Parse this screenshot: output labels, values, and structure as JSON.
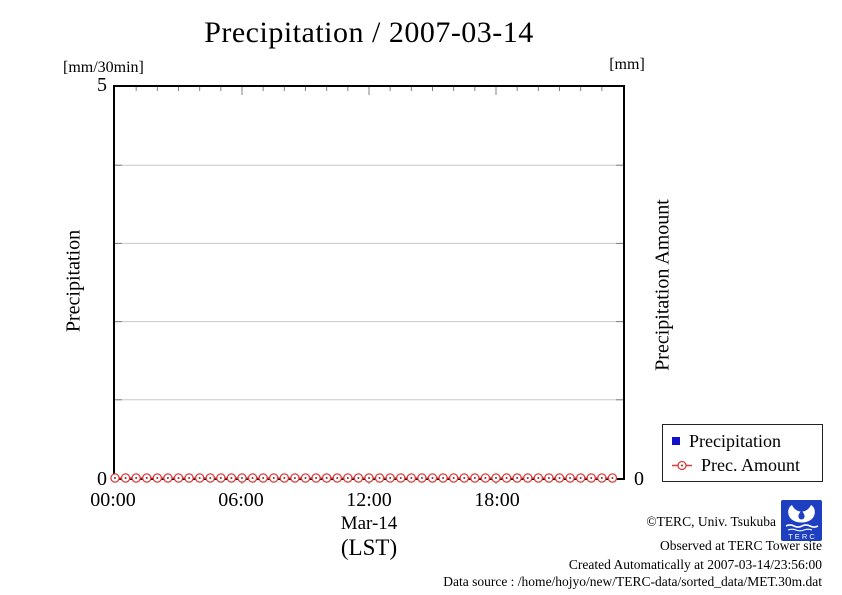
{
  "title": "Precipitation / 2007-03-14",
  "axes": {
    "left_unit": "[mm/30min]",
    "right_unit": "[mm]",
    "left_title": "Precipitation",
    "right_title": "Precipitation Amount",
    "y_max_label": "5",
    "y_zero_left": "0",
    "y_zero_right": "0"
  },
  "xaxis": {
    "date_label": "Mar-14",
    "tz_label": "(LST)"
  },
  "legend": {
    "items": [
      {
        "label": "Precipitation",
        "marker": "blue-filled-square"
      },
      {
        "label": "Prec. Amount",
        "marker": "red-open-circle"
      }
    ]
  },
  "footer": {
    "copyright": "©TERC, Univ. Tsukuba",
    "observed": "Observed at TERC Tower site",
    "created": "Created Automatically at 2007-03-14/23:56:00",
    "datasource": "Data source : /home/hojyo/new/TERC-data/sorted_data/MET.30m.dat",
    "logo_text": "T E R C"
  },
  "colors": {
    "series_red": "#dd3c3c",
    "series_red_dot": "#a02020",
    "series_blue": "#1111cc",
    "grid": "#c8c8c8",
    "tick": "#808080",
    "logo_blue": "#1d3fc0"
  },
  "chart_data": {
    "type": "line",
    "title": "Precipitation / 2007-03-14",
    "xlabel": "Mar-14 (LST)",
    "ylabel_left": "Precipitation [mm/30min]",
    "ylabel_right": "Precipitation Amount [mm]",
    "xlim": [
      0,
      24
    ],
    "ylim": [
      0,
      5
    ],
    "x_tick_labels": [
      "00:00",
      "06:00",
      "12:00",
      "18:00"
    ],
    "x_major_ticks": [
      0,
      6,
      12,
      18,
      24
    ],
    "x_minor_tick_step_hours": 1,
    "y_gridlines": [
      1,
      2,
      3,
      4
    ],
    "grid": "horizontal-only",
    "legend_position": "outside-bottom-right",
    "x": [
      0,
      0.5,
      1,
      1.5,
      2,
      2.5,
      3,
      3.5,
      4,
      4.5,
      5,
      5.5,
      6,
      6.5,
      7,
      7.5,
      8,
      8.5,
      9,
      9.5,
      10,
      10.5,
      11,
      11.5,
      12,
      12.5,
      13,
      13.5,
      14,
      14.5,
      15,
      15.5,
      16,
      16.5,
      17,
      17.5,
      18,
      18.5,
      19,
      19.5,
      20,
      20.5,
      21,
      21.5,
      22,
      22.5,
      23,
      23.5
    ],
    "series": [
      {
        "name": "Precipitation",
        "marker": "blue-filled-square",
        "visible": false,
        "values": [
          0,
          0,
          0,
          0,
          0,
          0,
          0,
          0,
          0,
          0,
          0,
          0,
          0,
          0,
          0,
          0,
          0,
          0,
          0,
          0,
          0,
          0,
          0,
          0,
          0,
          0,
          0,
          0,
          0,
          0,
          0,
          0,
          0,
          0,
          0,
          0,
          0,
          0,
          0,
          0,
          0,
          0,
          0,
          0,
          0,
          0,
          0,
          0
        ]
      },
      {
        "name": "Prec. Amount",
        "marker": "red-open-circle",
        "style": "linespoints",
        "visible": true,
        "values": [
          0,
          0,
          0,
          0,
          0,
          0,
          0,
          0,
          0,
          0,
          0,
          0,
          0,
          0,
          0,
          0,
          0,
          0,
          0,
          0,
          0,
          0,
          0,
          0,
          0,
          0,
          0,
          0,
          0,
          0,
          0,
          0,
          0,
          0,
          0,
          0,
          0,
          0,
          0,
          0,
          0,
          0,
          0,
          0,
          0,
          0,
          0,
          0
        ]
      }
    ]
  }
}
